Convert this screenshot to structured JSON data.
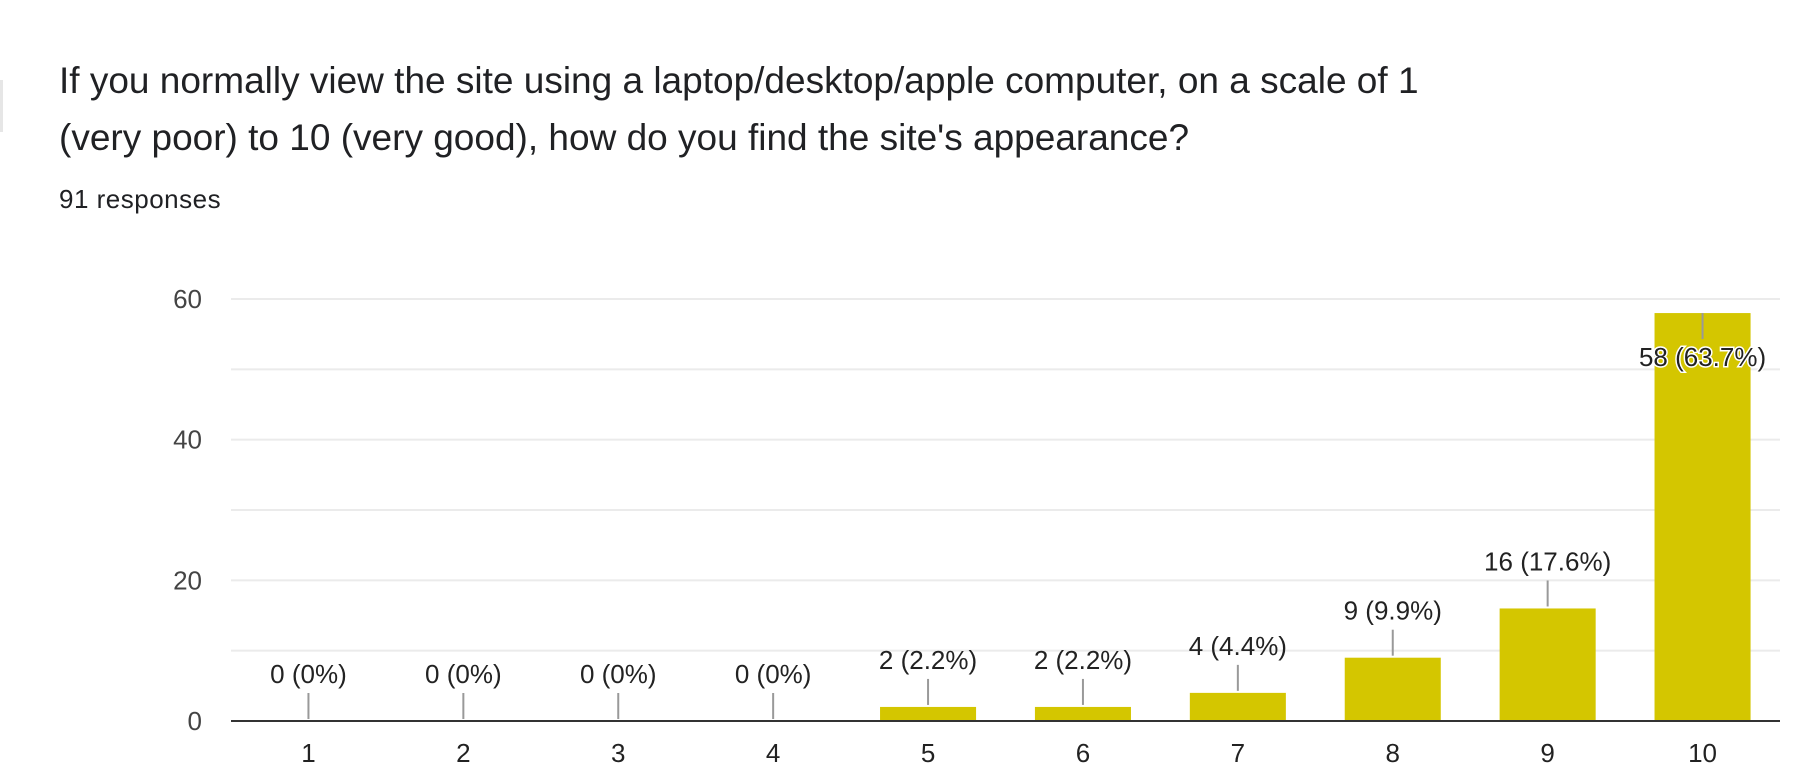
{
  "question": {
    "title": "If you normally view the site using a laptop/desktop/apple computer, on a scale of 1 (very poor) to 10 (very good), how do you find the site's appearance?",
    "responses": "91 responses"
  },
  "colors": {
    "bar": "#d4c600",
    "grid": "#ebebeb",
    "axis": "#333333",
    "leader": "#999999"
  },
  "chart_data": {
    "type": "bar",
    "title": "",
    "xlabel": "",
    "ylabel": "",
    "categories": [
      "1",
      "2",
      "3",
      "4",
      "5",
      "6",
      "7",
      "8",
      "9",
      "10"
    ],
    "values": [
      0,
      0,
      0,
      0,
      2,
      2,
      4,
      9,
      16,
      58
    ],
    "data_labels": [
      "0 (0%)",
      "0 (0%)",
      "0 (0%)",
      "0 (0%)",
      "2 (2.2%)",
      "2 (2.2%)",
      "4 (4.4%)",
      "9 (9.9%)",
      "16 (17.6%)",
      "58 (63.7%)"
    ],
    "yticks": [
      0,
      20,
      40,
      60
    ],
    "ylim": [
      0,
      60
    ],
    "grid": true,
    "legend": "none"
  }
}
